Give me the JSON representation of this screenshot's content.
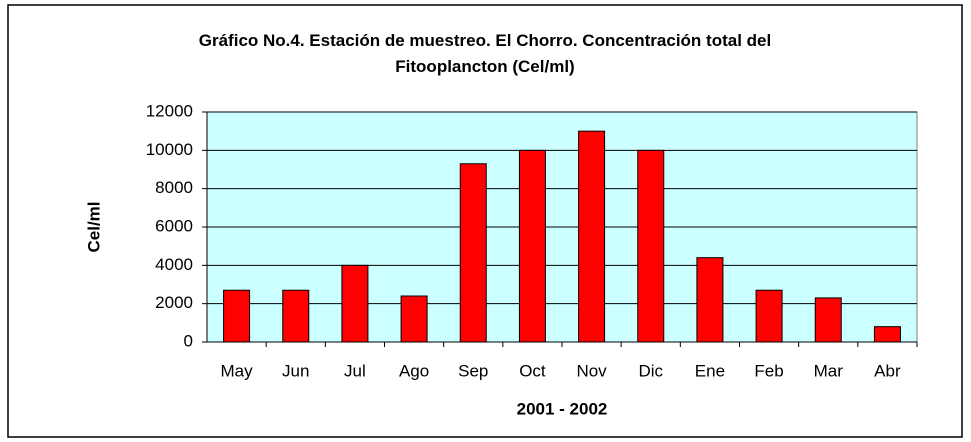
{
  "chart_data": {
    "type": "bar",
    "title": "Gráfico No.4. Estación de muestreo. El Chorro. Concentración total del Fitooplancton (Cel/ml)",
    "x_label": "2001 - 2002",
    "y_label": "Cel/ml",
    "categories": [
      "May",
      "Jun",
      "Jul",
      "Ago",
      "Sep",
      "Oct",
      "Nov",
      "Dic",
      "Ene",
      "Feb",
      "Mar",
      "Abr"
    ],
    "values": [
      2700,
      2700,
      4000,
      2400,
      9300,
      10000,
      11000,
      10000,
      4400,
      2700,
      2300,
      800
    ],
    "color": "#ff0000",
    "ylim": [
      0,
      12000
    ],
    "yticks": [
      0,
      2000,
      4000,
      6000,
      8000,
      10000,
      12000
    ],
    "grid": true
  }
}
